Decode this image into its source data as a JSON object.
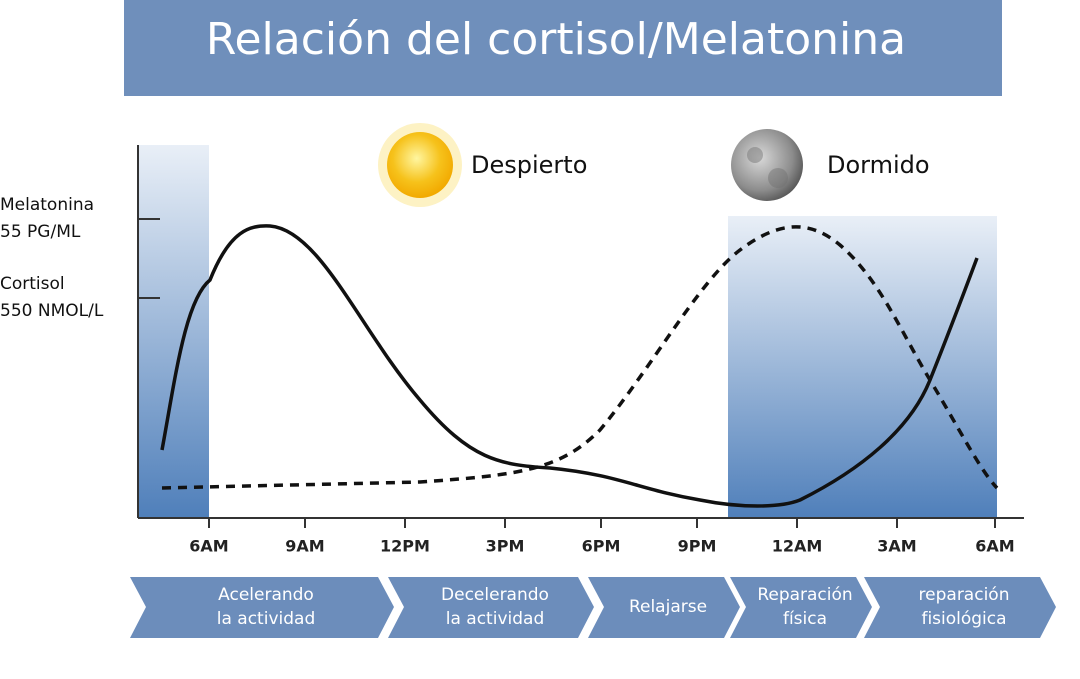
{
  "header": {
    "title": "Relación del cortisol/Melatonina"
  },
  "phases": {
    "awake": "Despierto",
    "asleep": "Dormido"
  },
  "y_labels": [
    [
      "Melatonina",
      "55 PG/ML"
    ],
    [
      "Cortisol",
      "550 NMOL/L"
    ]
  ],
  "x_labels": [
    "6AM",
    "9AM",
    "12PM",
    "3PM",
    "6PM",
    "9PM",
    "12AM",
    "3AM",
    "6AM"
  ],
  "stages": [
    [
      "Acelerando",
      "la actividad"
    ],
    [
      "Decelerando",
      "la actividad"
    ],
    [
      "Relajarse"
    ],
    [
      "Reparación",
      "física"
    ],
    [
      "reparación",
      "fisiológica"
    ]
  ]
}
